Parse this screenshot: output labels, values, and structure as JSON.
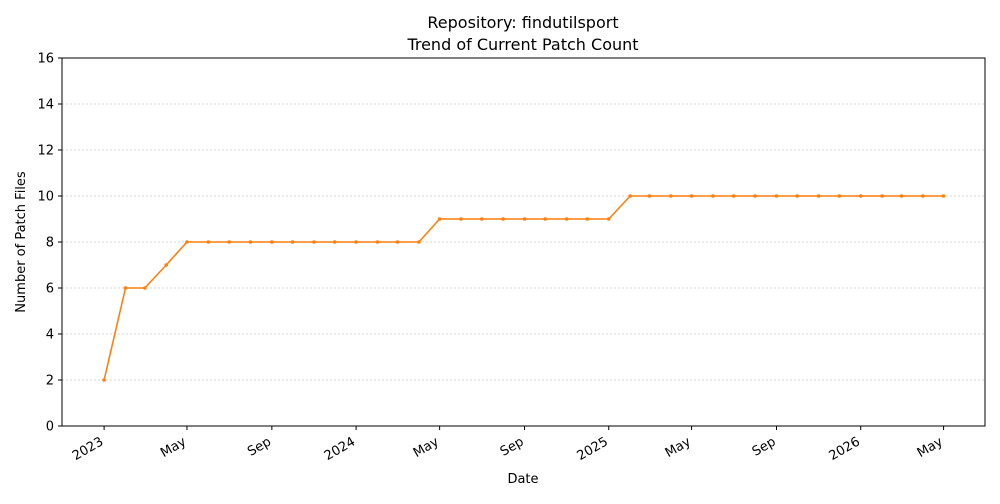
{
  "chart_data": {
    "type": "line",
    "title": "Repository: findutilsport",
    "subtitle": "Trend of Current Patch Count",
    "xlabel": "Date",
    "ylabel": "Number of Patch Files",
    "ylim": [
      0,
      16
    ],
    "yticks": [
      0,
      2,
      4,
      6,
      8,
      10,
      12,
      14,
      16
    ],
    "xticks": [
      {
        "date": "2023-01-01",
        "label": "2023"
      },
      {
        "date": "2023-05-01",
        "label": "May"
      },
      {
        "date": "2023-09-01",
        "label": "Sep"
      },
      {
        "date": "2024-01-01",
        "label": "2024"
      },
      {
        "date": "2024-05-01",
        "label": "May"
      },
      {
        "date": "2024-09-01",
        "label": "Sep"
      },
      {
        "date": "2025-01-01",
        "label": "2025"
      },
      {
        "date": "2025-05-01",
        "label": "May"
      },
      {
        "date": "2025-09-01",
        "label": "Sep"
      },
      {
        "date": "2026-01-01",
        "label": "2026"
      },
      {
        "date": "2026-05-01",
        "label": "May"
      }
    ],
    "xlim": [
      "2022-11-01",
      "2026-06-30"
    ],
    "grid": "horizontal dashed",
    "series": [
      {
        "color": "#ff7f0e",
        "x": [
          "2023-01-01",
          "2023-02-01",
          "2023-03-01",
          "2023-04-01",
          "2023-05-01",
          "2023-06-01",
          "2023-07-01",
          "2023-08-01",
          "2023-09-01",
          "2023-10-01",
          "2023-11-01",
          "2023-12-01",
          "2024-01-01",
          "2024-02-01",
          "2024-03-01",
          "2024-04-01",
          "2024-05-01",
          "2024-06-01",
          "2024-07-01",
          "2024-08-01",
          "2024-09-01",
          "2024-10-01",
          "2024-11-01",
          "2024-12-01",
          "2025-01-01",
          "2025-02-01",
          "2025-03-01",
          "2025-04-01",
          "2025-05-01",
          "2025-06-01",
          "2025-07-01",
          "2025-08-01",
          "2025-09-01",
          "2025-10-01",
          "2025-11-01",
          "2025-12-01",
          "2026-01-01",
          "2026-02-01",
          "2026-03-01",
          "2026-04-01",
          "2026-05-01"
        ],
        "y": [
          2,
          6,
          6,
          7,
          8,
          8,
          8,
          8,
          8,
          8,
          8,
          8,
          8,
          8,
          8,
          8,
          9,
          9,
          9,
          9,
          9,
          9,
          9,
          9,
          9,
          10,
          10,
          10,
          10,
          10,
          10,
          10,
          10,
          10,
          10,
          10,
          10,
          10,
          10,
          10,
          10
        ]
      }
    ]
  }
}
